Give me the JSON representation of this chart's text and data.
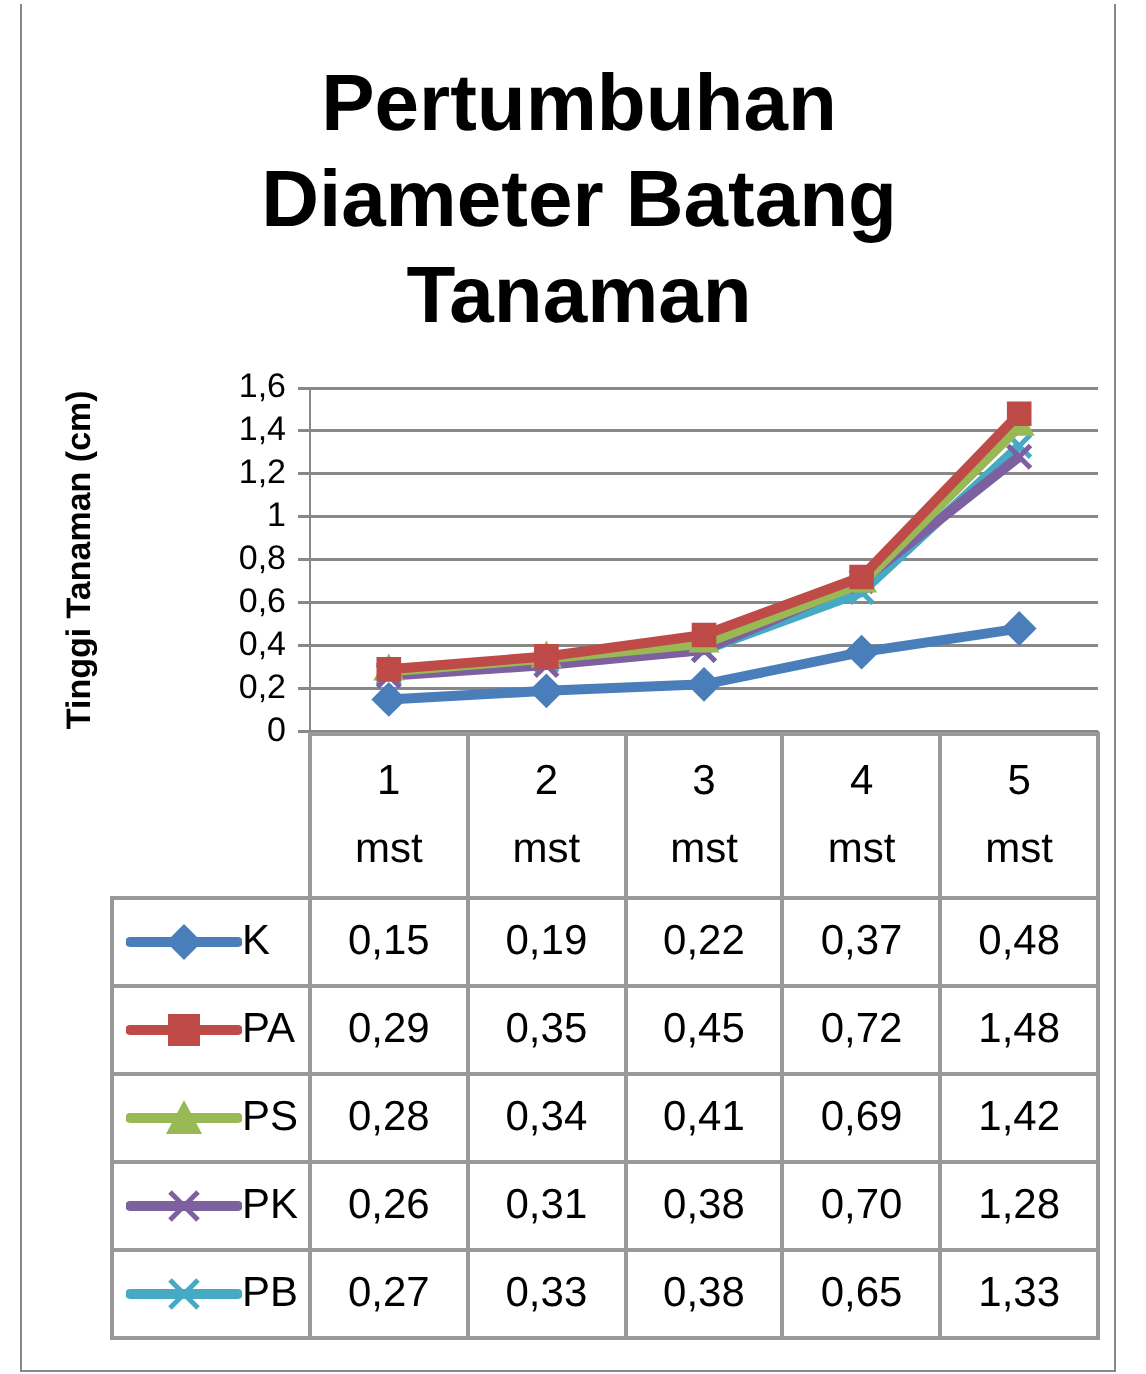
{
  "chart_data": {
    "type": "line",
    "title": "Pertumbuhan Diameter Batang Tanaman",
    "ylabel": "Tinggi Tanaman (cm)",
    "categories": [
      "1 mst",
      "2 mst",
      "3 mst",
      "4 mst",
      "5 mst"
    ],
    "series": [
      {
        "name": "K",
        "color": "#4a7ebb",
        "marker": "diamond",
        "values": [
          0.15,
          0.19,
          0.22,
          0.37,
          0.48
        ],
        "value_labels": [
          "0,15",
          "0,19",
          "0,22",
          "0,37",
          "0,48"
        ]
      },
      {
        "name": "PA",
        "color": "#be4b48",
        "marker": "square",
        "values": [
          0.29,
          0.35,
          0.45,
          0.72,
          1.48
        ],
        "value_labels": [
          "0,29",
          "0,35",
          "0,45",
          "0,72",
          "1,48"
        ]
      },
      {
        "name": "PS",
        "color": "#98b954",
        "marker": "triangle",
        "values": [
          0.28,
          0.34,
          0.41,
          0.69,
          1.42
        ],
        "value_labels": [
          "0,28",
          "0,34",
          "0,41",
          "0,69",
          "1,42"
        ]
      },
      {
        "name": "PK",
        "color": "#7d60a0",
        "marker": "cross",
        "values": [
          0.26,
          0.31,
          0.38,
          0.7,
          1.28
        ],
        "value_labels": [
          "0,26",
          "0,31",
          "0,38",
          "0,70",
          "1,28"
        ]
      },
      {
        "name": "PB",
        "color": "#46aac5",
        "marker": "cross",
        "values": [
          0.27,
          0.33,
          0.38,
          0.65,
          1.33
        ],
        "value_labels": [
          "0,27",
          "0,33",
          "0,38",
          "0,65",
          "1,33"
        ]
      }
    ],
    "ylim": [
      0,
      1.6
    ],
    "yticks": [
      0,
      {
        "value": 0.2,
        "label": "0,2"
      },
      {
        "value": 0.4,
        "label": "0,4"
      },
      {
        "value": 0.6,
        "label": "0,6"
      },
      {
        "value": 0.8,
        "label": "0,8"
      },
      1,
      {
        "value": 1.2,
        "label": "1,2"
      },
      {
        "value": 1.4,
        "label": "1,4"
      },
      {
        "value": 1.6,
        "label": "1,6"
      }
    ],
    "grid": "y",
    "legend": "bottom",
    "line_style": "solid"
  }
}
